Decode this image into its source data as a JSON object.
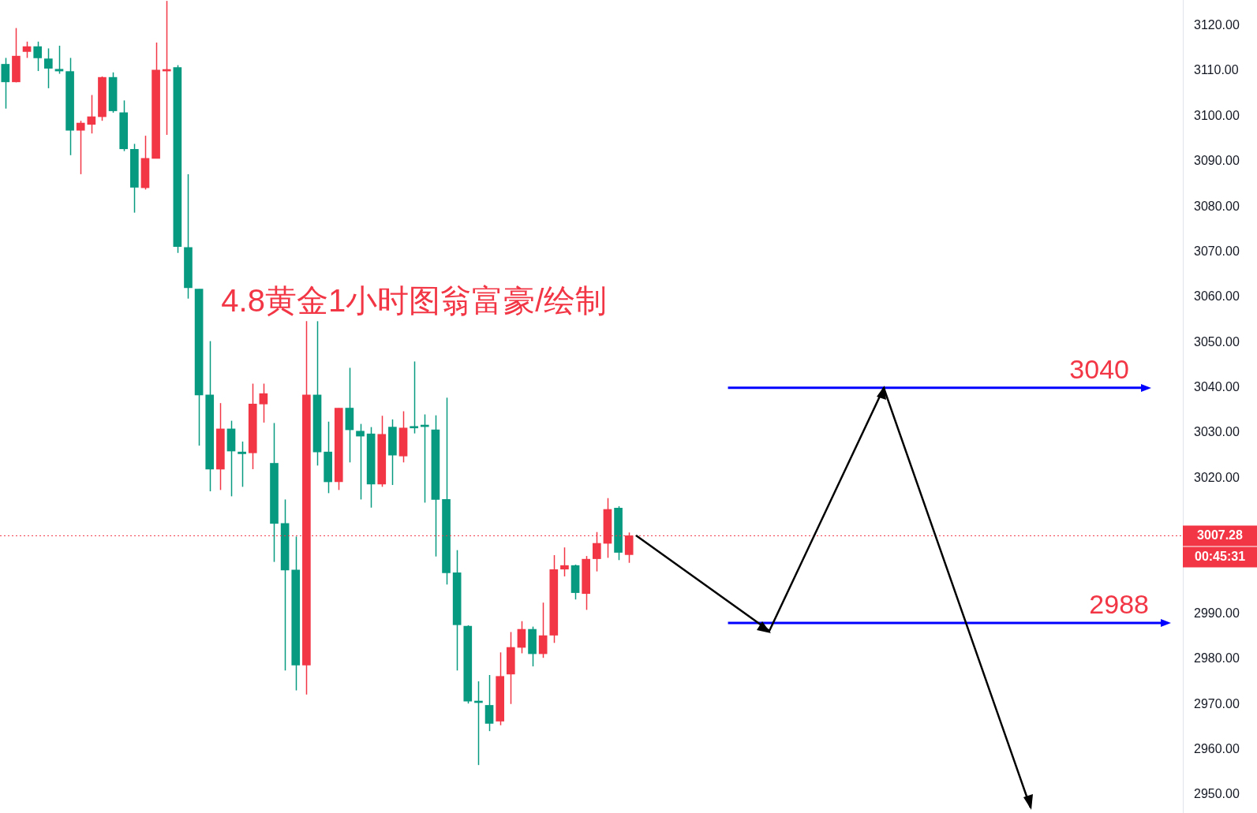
{
  "chart_data": {
    "type": "candlestick",
    "title": "4.8黄金1小时图翁富豪/绘制",
    "categories": [
      null,
      null,
      null,
      null,
      null,
      null,
      null,
      null,
      null,
      null,
      null,
      null,
      null,
      null,
      null,
      null,
      null,
      null,
      null,
      null,
      null,
      null,
      null,
      null,
      null,
      null,
      null,
      null,
      null,
      null,
      null,
      null,
      null,
      null,
      null,
      null,
      null,
      null,
      null,
      null,
      null,
      null,
      null,
      null,
      null,
      null,
      null,
      null,
      null,
      null,
      null,
      null,
      null,
      null,
      null,
      null,
      null,
      null,
      null,
      null,
      null,
      null,
      null,
      null,
      null,
      null,
      null,
      null,
      null,
      null,
      null,
      null,
      null,
      null,
      null,
      null,
      null,
      null,
      null,
      null,
      null,
      null,
      null,
      null,
      null,
      null,
      null,
      null,
      null,
      null,
      null,
      null,
      null,
      null,
      null,
      null,
      null,
      null,
      null,
      null,
      null,
      null,
      null,
      null,
      null,
      null,
      null,
      null,
      null,
      null
    ],
    "ohlc": [
      [
        3111.5,
        3112.9,
        3101.7,
        3107.6
      ],
      [
        3107.6,
        3119.5,
        3107.5,
        3113.3
      ],
      [
        3114.3,
        3116.5,
        3112.9,
        3115.4
      ],
      [
        3115.4,
        3116.5,
        3110,
        3112.9
      ],
      [
        3112.7,
        3115,
        3106.2,
        3110.6
      ],
      [
        3110.4,
        3115.6,
        3109.4,
        3110
      ],
      [
        3109.9,
        3112.9,
        3091.4,
        3096.9
      ],
      [
        3096.9,
        3099,
        3087.2,
        3098.5
      ],
      [
        3098.2,
        3104.7,
        3096.2,
        3099.9
      ],
      [
        3099.9,
        3108.8,
        3099,
        3108.6
      ],
      [
        3108.6,
        3109.7,
        3100.8,
        3101.2
      ],
      [
        3100.8,
        3103.5,
        3092.3,
        3092.8
      ],
      [
        3092.7,
        3093.9,
        3078.7,
        3084.3
      ],
      [
        3084.2,
        3095.7,
        3083.8,
        3090.7
      ],
      [
        3090.7,
        3116.3,
        3090.7,
        3110.2
      ],
      [
        3110,
        3125.5,
        3095.9,
        3110.1
      ],
      [
        3110.8,
        3111.3,
        3069.8,
        3071.2
      ],
      [
        3071,
        3087.2,
        3059.7,
        3062.1
      ],
      [
        3061.8,
        3061.8,
        3027.2,
        3038.4
      ],
      [
        3038.4,
        3050.3,
        3017.1,
        3022
      ],
      [
        3022,
        3036.6,
        3017.4,
        3030.9
      ],
      [
        3030.9,
        3032.7,
        3016,
        3026
      ],
      [
        3025.8,
        3028.1,
        3018.1,
        3025.4
      ],
      [
        3025.6,
        3040.9,
        3022,
        3036.4
      ],
      [
        3036.4,
        3040.9,
        3032.3,
        3038.7
      ],
      [
        3023.3,
        3032.2,
        3001.5,
        3010
      ],
      [
        3010,
        3015.3,
        2977.5,
        2999.7
      ],
      [
        2999.7,
        3007.1,
        2973.1,
        2978.7
      ],
      [
        2978.7,
        3054.7,
        2972.2,
        3038.4
      ],
      [
        3038.4,
        3054.7,
        3022.8,
        3025.8
      ],
      [
        3025.8,
        3032.5,
        3016.7,
        3019.2
      ],
      [
        3019.2,
        3035.5,
        3017.4,
        3035.5
      ],
      [
        3035.5,
        3044.4,
        3023.5,
        3030.7
      ],
      [
        3030.4,
        3032,
        3015.3,
        3029.3
      ],
      [
        3029.8,
        3031.3,
        3013.5,
        3018.7
      ],
      [
        3018.7,
        3033.8,
        3018.1,
        3029.7
      ],
      [
        3031.3,
        3033,
        3018.5,
        3025.1
      ],
      [
        3024.9,
        3034.8,
        3023.5,
        3031.1
      ],
      [
        3031.2,
        3045.8,
        3029.9,
        3031.1
      ],
      [
        3031.5,
        3034.1,
        3014.6,
        3031.4
      ],
      [
        3030.7,
        3033.9,
        3002.7,
        3015.3
      ],
      [
        3015.3,
        3037.8,
        2996.5,
        2999.1
      ],
      [
        2999.1,
        3004.1,
        2977.5,
        2987.6
      ],
      [
        2987.3,
        2987.5,
        2970.2,
        2970.7
      ],
      [
        2970.6,
        2975.1,
        2956.6,
        2970.4
      ],
      [
        2969.8,
        2976.5,
        2964.1,
        2965.8
      ],
      [
        2966.3,
        2981.5,
        2965.4,
        2976.2
      ],
      [
        2976.7,
        2986,
        2970.1,
        2982.6
      ],
      [
        2982.6,
        2988.4,
        2981.3,
        2986.6
      ],
      [
        2986.6,
        2987.2,
        2978.4,
        2981.2
      ],
      [
        2981.2,
        2992.5,
        2980.3,
        2985.2
      ],
      [
        2985.3,
        3003,
        2983.6,
        2999.8
      ],
      [
        2999.9,
        3004.7,
        2998.3,
        3000.7
      ],
      [
        3000.7,
        3000.9,
        2993.2,
        2994.7
      ],
      [
        2994.5,
        3002.8,
        2990.9,
        3002.1
      ],
      [
        3002.2,
        3008.1,
        2999.4,
        3005.6
      ],
      [
        3005.6,
        3015.6,
        3002.4,
        3013.1
      ],
      [
        3013.4,
        3013.8,
        3001.9,
        3003.6
      ],
      [
        3003.1,
        3008,
        3001.3,
        3007.28
      ],
      null,
      null,
      null,
      null,
      null,
      null,
      null,
      null,
      null,
      null,
      null,
      null,
      null,
      null,
      null,
      null,
      null,
      null,
      null,
      null,
      null,
      null,
      null,
      null,
      null,
      null,
      null,
      null,
      null,
      null,
      null,
      null,
      null,
      null,
      null,
      null,
      null,
      null,
      null,
      null,
      null,
      null,
      null,
      null,
      null,
      null,
      null,
      null,
      null,
      null,
      null
    ],
    "colors": [
      "#089981",
      "#f23645",
      "#f23645",
      "#089981",
      "#089981",
      "#089981",
      "#089981",
      "#f23645",
      "#f23645",
      "#f23645",
      "#089981",
      "#089981",
      "#089981",
      "#f23645",
      "#f23645",
      "#f23645",
      "#089981",
      "#089981",
      "#089981",
      "#089981",
      "#f23645",
      "#089981",
      "#089981",
      "#f23645",
      "#f23645",
      "#089981",
      "#089981",
      "#089981",
      "#f23645",
      "#089981",
      "#089981",
      "#f23645",
      "#089981",
      "#089981",
      "#089981",
      "#f23645",
      "#089981",
      "#f23645",
      "#089981",
      "#089981",
      "#089981",
      "#089981",
      "#089981",
      "#089981",
      "#089981",
      "#089981",
      "#f23645",
      "#f23645",
      "#f23645",
      "#089981",
      "#f23645",
      "#f23645",
      "#f23645",
      "#089981",
      "#f23645",
      "#f23645",
      "#f23645",
      "#089981",
      "#f23645",
      null,
      null,
      null,
      null,
      null,
      null,
      null,
      null,
      null,
      null,
      null,
      null,
      null,
      null,
      null,
      null,
      null,
      null,
      null,
      null,
      null,
      null,
      null,
      null,
      null,
      null,
      null,
      null,
      null,
      null,
      null,
      null,
      null,
      null,
      null,
      null,
      null,
      null,
      null,
      null,
      null,
      null,
      null,
      null,
      null,
      null,
      null,
      null,
      null,
      null,
      null
    ],
    "ylim": [
      2946,
      3125.7
    ],
    "yticks": [
      {
        "value": 2950,
        "label": "2950.00"
      },
      {
        "value": 2960,
        "label": "2960.00"
      },
      {
        "value": 2970,
        "label": "2970.00"
      },
      {
        "value": 2980,
        "label": "2980.00"
      },
      {
        "value": 2990,
        "label": "2990.00"
      },
      {
        "value": 3020,
        "label": "3020.00"
      },
      {
        "value": 3030,
        "label": "3030.00"
      },
      {
        "value": 3040,
        "label": "3040.00"
      },
      {
        "value": 3050,
        "label": "3050.00"
      },
      {
        "value": 3060,
        "label": "3060.00"
      },
      {
        "value": 3070,
        "label": "3070.00"
      },
      {
        "value": 3080,
        "label": "3080.00"
      },
      {
        "value": 3090,
        "label": "3090.00"
      },
      {
        "value": 3100,
        "label": "3100.00"
      },
      {
        "value": 3110,
        "label": "3110.00"
      },
      {
        "value": 3120,
        "label": "3120.00"
      }
    ],
    "ref_lines": [
      {
        "axis": "y",
        "value": 3040,
        "label": "3040",
        "color": "#0000ff"
      },
      {
        "axis": "y",
        "value": 2988,
        "label": "2988",
        "color": "#0000ff"
      },
      {
        "axis": "y",
        "value": 3007.28,
        "label": "3007.28",
        "color": "#f23645",
        "line_style": "dotted"
      }
    ],
    "annotations": [
      "00:45:31"
    ],
    "tick_labels": "y",
    "grid": false,
    "legend": false
  }
}
